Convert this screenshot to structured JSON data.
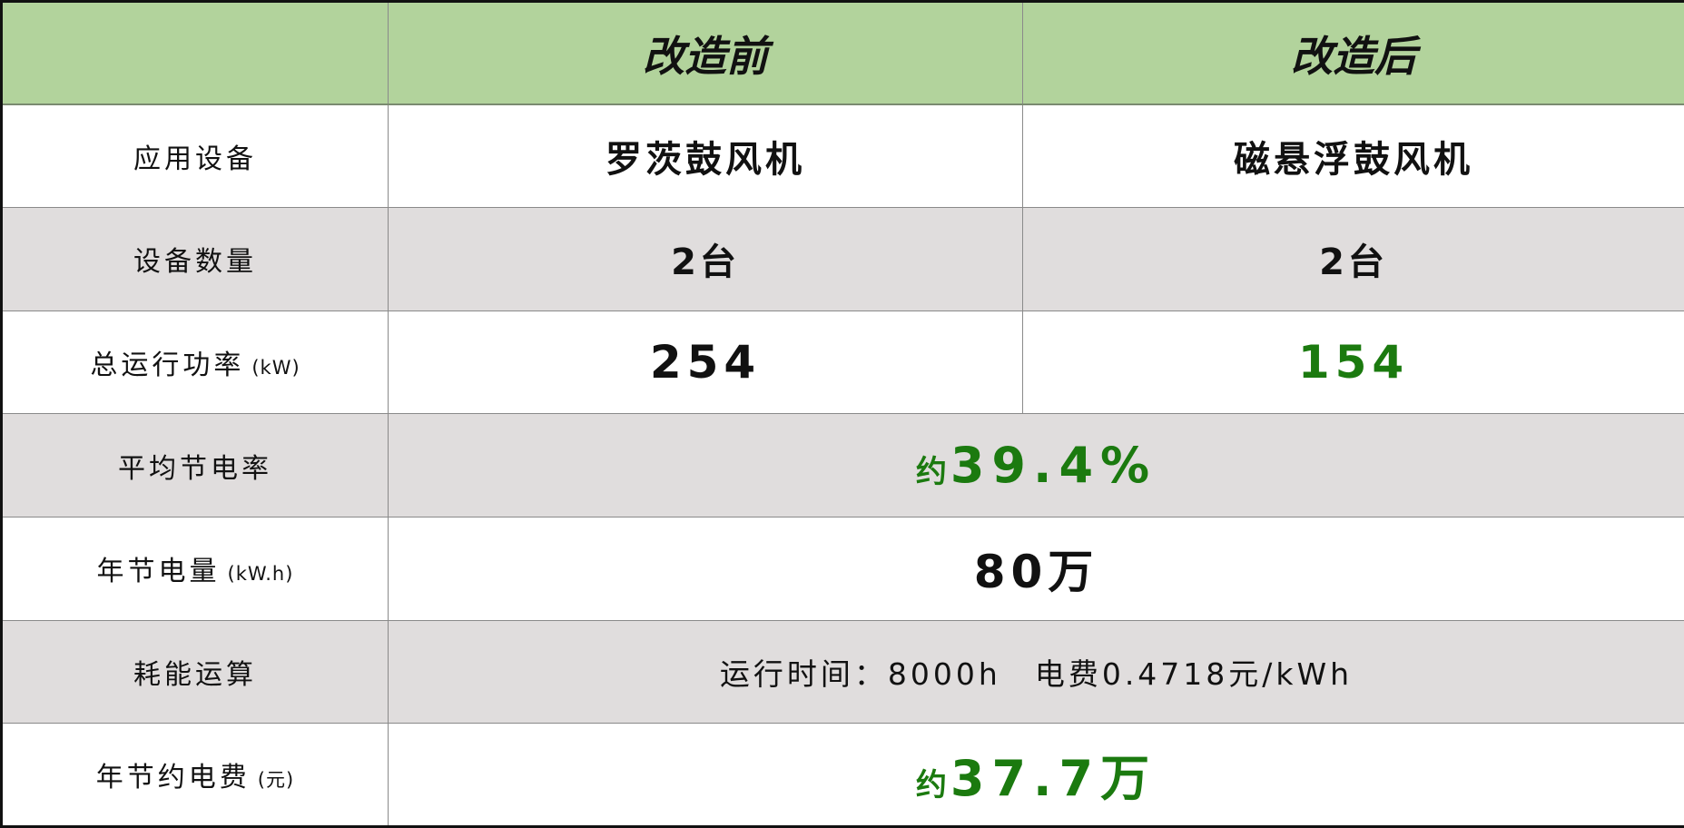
{
  "header": {
    "col0": "",
    "before": "改造前",
    "after": "改造后"
  },
  "rows": [
    {
      "label": "应用设备",
      "unit": "",
      "before": "罗茨鼓风机",
      "after": "磁悬浮鼓风机"
    },
    {
      "label": "设备数量",
      "unit": "",
      "before": "2台",
      "after": "2台"
    },
    {
      "label": "总运行功率",
      "unit": "(kW)",
      "before": "254",
      "after": "154"
    },
    {
      "label": "平均节电率",
      "unit": "",
      "prefix": "约",
      "value": "39.4%"
    },
    {
      "label": "年节电量",
      "unit": "(kW.h)",
      "value": "80万"
    },
    {
      "label": "耗能运算",
      "unit": "",
      "value": "运行时间：8000h　电费0.4718元/kWh"
    },
    {
      "label": "年节约电费",
      "unit": "(元)",
      "prefix": "约",
      "value": "37.7万"
    }
  ],
  "colors": {
    "header_bg": "#b2d39c",
    "row_alt_bg": "#e0dddd",
    "highlight_green": "#1b7a0f"
  }
}
